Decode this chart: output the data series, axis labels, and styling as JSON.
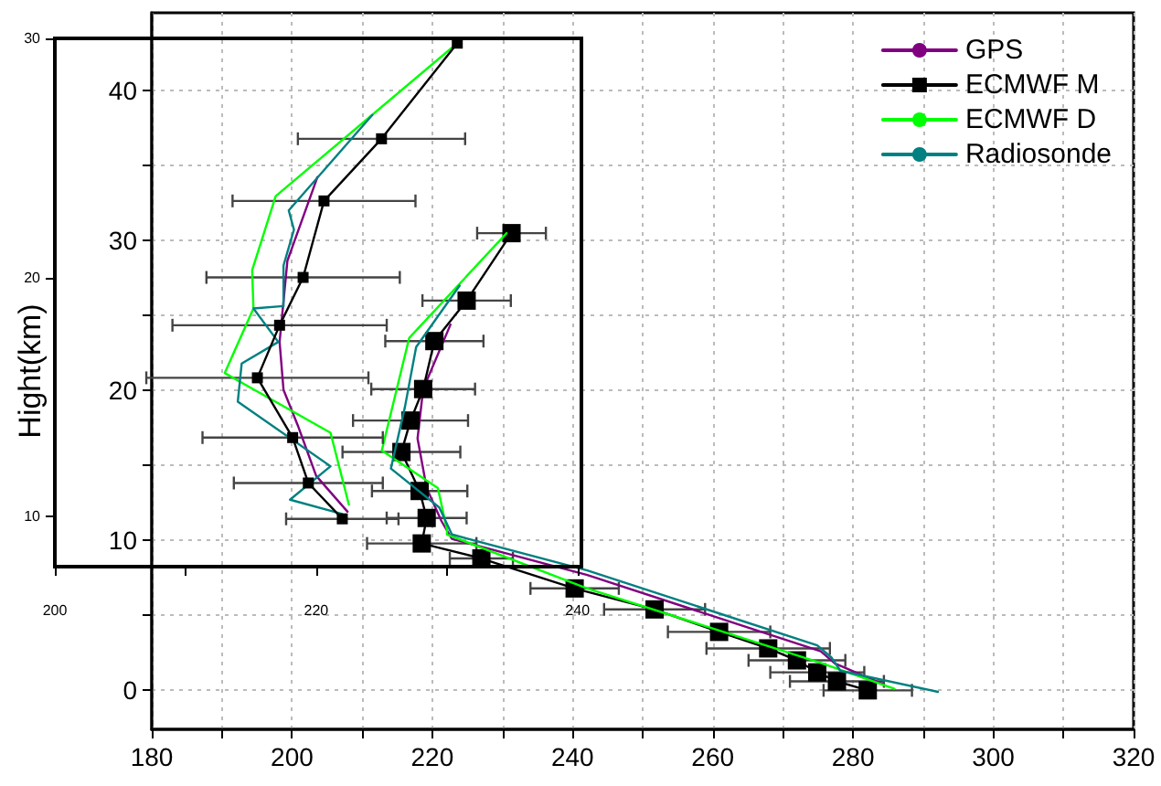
{
  "chart_data": [
    {
      "type": "line",
      "ylabel": "Hight(km)",
      "xlim": [
        180,
        320
      ],
      "ylim": [
        -2.6,
        45.2
      ],
      "xticks": [
        180,
        {
          "value": 190,
          "label": null
        },
        200,
        {
          "value": 210,
          "label": null
        },
        220,
        {
          "value": 230,
          "label": null
        },
        240,
        {
          "value": 250,
          "label": null
        },
        260,
        {
          "value": 270,
          "label": null
        },
        280,
        {
          "value": 290,
          "label": null
        },
        300,
        {
          "value": 310,
          "label": null
        },
        320
      ],
      "yticks": [
        0,
        {
          "value": 5,
          "label": null
        },
        10,
        {
          "value": 15,
          "label": null
        },
        20,
        {
          "value": 25,
          "label": null
        },
        30,
        {
          "value": 35,
          "label": null
        },
        40
      ],
      "grid": true,
      "legend": "top right",
      "series": [
        {
          "name": "GPS",
          "color": "#800080",
          "marker": "none",
          "x": [
            222.6,
            218.7,
            217.9,
            219.2,
            221.3,
            222.8,
            242.1,
            275.4,
            277.4,
            284.4
          ],
          "values": [
            24.4,
            20.1,
            16.8,
            13.5,
            11.3,
            10.1,
            7.7,
            2.6,
            1.8,
            0.4
          ]
        },
        {
          "name": "ECMWF M",
          "color": "#000000",
          "marker": "square",
          "x": [
            231.3,
            224.9,
            220.3,
            218.7,
            216.9,
            215.6,
            218.2,
            219.2,
            218.5,
            227.0,
            240.3,
            251.7,
            260.9,
            267.9,
            272.0,
            274.9,
            277.7,
            282.1
          ],
          "values": [
            30.5,
            26.0,
            23.3,
            20.1,
            18.0,
            15.9,
            13.3,
            11.5,
            9.8,
            8.8,
            6.8,
            5.4,
            3.9,
            2.8,
            2.0,
            1.2,
            0.6,
            0.0
          ],
          "xerrors": [
            4.9,
            6.3,
            7.0,
            7.4,
            8.2,
            8.4,
            6.8,
            5.7,
            7.8,
            4.5,
            6.3,
            7.2,
            7.3,
            8.8,
            6.9,
            6.7,
            6.7,
            6.3
          ]
        },
        {
          "name": "ECMWF D",
          "color": "#00ff00",
          "marker": "none",
          "x": [
            230.6,
            216.7,
            212.8,
            220.8,
            222.1,
            222.1,
            242.1,
            275.6,
            285.9
          ],
          "values": [
            30.5,
            23.5,
            16.0,
            13.5,
            10.7,
            10.4,
            6.8,
            1.8,
            0.1
          ]
        },
        {
          "name": "Radiosonde",
          "color": "#008080",
          "marker": "none",
          "x": [
            223.9,
            217.7,
            216.1,
            214.1,
            221.0,
            222.8,
            242.1,
            274.9,
            276.9,
            278.2,
            292.1
          ],
          "values": [
            27.0,
            22.9,
            18.9,
            14.8,
            12.2,
            10.4,
            8.0,
            3.0,
            2.2,
            1.3,
            -0.1
          ]
        }
      ]
    },
    {
      "type": "line",
      "xlim": [
        200,
        240.3
      ],
      "ylim": [
        7.9,
        30
      ],
      "xticks": [
        200,
        {
          "value": 210,
          "label": null
        },
        220,
        {
          "value": 230,
          "label": null
        },
        240
      ],
      "yticks": [
        10,
        20,
        30
      ],
      "series": [
        {
          "color": "#800080",
          "marker": "none",
          "x": [
            220.1,
            217.8,
            217.2,
            217.5,
            218.6,
            220.0,
            222.4
          ],
          "values": [
            24.2,
            20.7,
            17.3,
            15.3,
            13.8,
            11.7,
            10.2
          ]
        },
        {
          "color": "#00ff00",
          "marker": "none",
          "x": [
            230.8,
            216.9,
            215.1,
            215.2,
            213.0,
            221.1,
            222.5
          ],
          "values": [
            29.8,
            23.4,
            20.3,
            18.7,
            16.0,
            13.5,
            10.5
          ]
        },
        {
          "color": "#008080",
          "marker": "none",
          "x": [
            224.3,
            217.9,
            218.3,
            217.5,
            217.5,
            215.2,
            217.1,
            214.3,
            214.0,
            221.1,
            218.0,
            222.0
          ],
          "values": [
            26.8,
            22.8,
            22.0,
            20.5,
            18.8,
            18.7,
            17.3,
            16.4,
            14.8,
            12.1,
            10.7,
            10.1
          ]
        },
        {
          "color": "#000000",
          "marker": "square",
          "x": [
            230.8,
            225.0,
            220.6,
            219.0,
            217.2,
            215.5,
            218.2,
            219.4,
            222.0
          ],
          "values": [
            29.8,
            25.8,
            23.2,
            20.0,
            18.0,
            15.8,
            13.3,
            11.4,
            9.9
          ],
          "xerrors": [
            null,
            6.4,
            7.0,
            7.4,
            8.2,
            8.5,
            6.9,
            5.7,
            4.3
          ]
        }
      ]
    }
  ]
}
